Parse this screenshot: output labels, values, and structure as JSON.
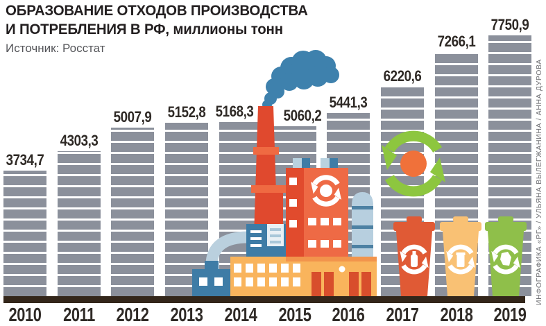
{
  "header": {
    "title_line1": "ОБРАЗОВАНИЕ ОТХОДОВ ПРОИЗВОДСТВА",
    "title_line2": "И ПОТРЕБЛЕНИЯ В РФ, миллионы тонн",
    "source": "Источник: Росстат"
  },
  "credit": "ИНФОГРАФИКА «РГ» / УЛЬЯНА ВЫЛЕГЖАНИНА / АННА ДУРОВА",
  "chart_data": {
    "type": "bar",
    "title": "ОБРАЗОВАНИЕ ОТХОДОВ ПРОИЗВОДСТВА И ПОТРЕБЛЕНИЯ В РФ, миллионы тонн",
    "source": "Источник: Росстат",
    "categories": [
      "2010",
      "2011",
      "2012",
      "2013",
      "2014",
      "2015",
      "2016",
      "2017",
      "2018",
      "2019"
    ],
    "values": [
      3734.7,
      4303.3,
      5007.9,
      5152.8,
      5168.3,
      5060.2,
      5441.3,
      6220.6,
      7266.1,
      7750.9
    ],
    "value_labels": [
      "3734,7",
      "4303,3",
      "5007,9",
      "5152,8",
      "5168,3",
      "5060,2",
      "5441,3",
      "6220,6",
      "7266,1",
      "7750,9"
    ],
    "xlabel": "",
    "ylabel": "миллионы тонн",
    "ylim": [
      0,
      7750.9
    ],
    "grid": false,
    "legend": "none",
    "bar_style": "gray horizontal-striped blocks",
    "bar_color": "#8b909b"
  },
  "illustrations": [
    "blue-smoke-cloud",
    "factory-with-chimneys",
    "recycling-arrows",
    "waste-bin-red",
    "waste-bin-yellow",
    "waste-bin-green"
  ],
  "colors": {
    "bar": "#8b909b",
    "baseline": "#33261a",
    "text_dark": "#2f2a26",
    "smoke_blue": "#3e81ad",
    "chimney_red": "#e0492e",
    "building_red": "#e14b2d",
    "building_orange": "#ee6a45",
    "building_yellow": "#f9b45c",
    "steel_blue": "#3e7ca6",
    "pipe_blue": "#bad0de",
    "silo_blue": "#b7cfdf",
    "recycle_green": "#8dc63f",
    "recycle_orange": "#f0713a",
    "bin_red": "#e05a35",
    "bin_yellow": "#f9c174",
    "bin_green": "#8fbf4a",
    "door_red": "#d84e2c"
  }
}
